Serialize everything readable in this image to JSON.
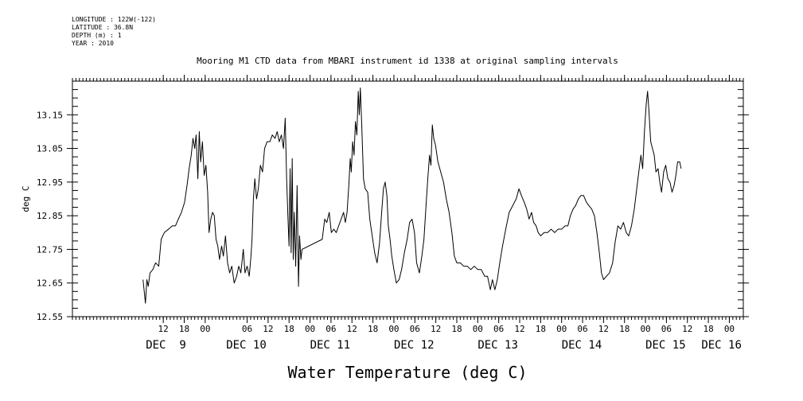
{
  "meta": {
    "longitude": "LONGITUDE : 122W(-122)",
    "latitude": "LATITUDE : 36.8N",
    "depth": "DEPTH (m) : 1",
    "year": "YEAR : 2010"
  },
  "chart_data": {
    "type": "line",
    "title": "Mooring M1 CTD data from MBARI instrument id 1338 at original sampling intervals",
    "xlabel": "Water Temperature (deg C)",
    "ylabel": "deg C",
    "ylim": [
      12.55,
      13.25
    ],
    "yticks": [
      12.55,
      12.65,
      12.75,
      12.85,
      12.95,
      13.05,
      13.15
    ],
    "ytick_labels": [
      "12.55",
      "12.65",
      "12.75",
      "12.85",
      "12.95",
      "13.05",
      "13.15"
    ],
    "x_unit": "hours from Dec 9 00:00",
    "xlim": [
      -20,
      172
    ],
    "x_hour_ticks": [
      {
        "t": 6,
        "label": "12"
      },
      {
        "t": 12,
        "label": "18"
      },
      {
        "t": 18,
        "label": "00"
      },
      {
        "t": 30,
        "label": "06"
      },
      {
        "t": 36,
        "label": "12"
      },
      {
        "t": 42,
        "label": "18"
      },
      {
        "t": 48,
        "label": "00"
      },
      {
        "t": 54,
        "label": "06"
      },
      {
        "t": 60,
        "label": "12"
      },
      {
        "t": 66,
        "label": "18"
      },
      {
        "t": 72,
        "label": "00"
      },
      {
        "t": 78,
        "label": "06"
      },
      {
        "t": 84,
        "label": "12"
      },
      {
        "t": 90,
        "label": "18"
      },
      {
        "t": 96,
        "label": "00"
      },
      {
        "t": 102,
        "label": "06"
      },
      {
        "t": 108,
        "label": "12"
      },
      {
        "t": 114,
        "label": "18"
      },
      {
        "t": 120,
        "label": "00"
      },
      {
        "t": 126,
        "label": "06"
      },
      {
        "t": 132,
        "label": "12"
      },
      {
        "t": 138,
        "label": "18"
      },
      {
        "t": 144,
        "label": "00"
      },
      {
        "t": 150,
        "label": "06"
      },
      {
        "t": 156,
        "label": "12"
      },
      {
        "t": 162,
        "label": "18"
      },
      {
        "t": 168,
        "label": "00"
      }
    ],
    "x_day_labels": [
      {
        "t": 1,
        "label": "DEC  9"
      },
      {
        "t": 24,
        "label": "DEC 10"
      },
      {
        "t": 48,
        "label": "DEC 11"
      },
      {
        "t": 72,
        "label": "DEC 12"
      },
      {
        "t": 96,
        "label": "DEC 13"
      },
      {
        "t": 120,
        "label": "DEC 14"
      },
      {
        "t": 144,
        "label": "DEC 15"
      },
      {
        "t": 160,
        "label": "DEC 16"
      }
    ],
    "series": [
      {
        "points": [
          [
            0.2,
            12.66
          ],
          [
            0.6,
            12.62
          ],
          [
            0.9,
            12.59
          ],
          [
            1.3,
            12.66
          ],
          [
            1.7,
            12.64
          ],
          [
            2.2,
            12.68
          ],
          [
            3.0,
            12.69
          ],
          [
            3.8,
            12.71
          ],
          [
            4.7,
            12.7
          ],
          [
            5.4,
            12.78
          ],
          [
            6.3,
            12.8
          ],
          [
            7.5,
            12.81
          ],
          [
            8.6,
            12.82
          ],
          [
            9.5,
            12.82
          ],
          [
            10.3,
            12.84
          ],
          [
            11.2,
            12.86
          ],
          [
            12.1,
            12.89
          ],
          [
            12.8,
            12.94
          ],
          [
            13.4,
            12.99
          ],
          [
            14.0,
            13.03
          ],
          [
            14.5,
            13.08
          ],
          [
            15.0,
            13.05
          ],
          [
            15.4,
            13.09
          ],
          [
            15.9,
            12.96
          ],
          [
            16.3,
            13.1
          ],
          [
            16.7,
            13.01
          ],
          [
            17.2,
            13.07
          ],
          [
            17.7,
            12.97
          ],
          [
            18.2,
            13.0
          ],
          [
            18.7,
            12.92
          ],
          [
            19.1,
            12.8
          ],
          [
            19.6,
            12.84
          ],
          [
            20.1,
            12.86
          ],
          [
            20.6,
            12.85
          ],
          [
            21.1,
            12.78
          ],
          [
            21.6,
            12.76
          ],
          [
            22.1,
            12.72
          ],
          [
            22.7,
            12.76
          ],
          [
            23.2,
            12.73
          ],
          [
            23.8,
            12.79
          ],
          [
            24.4,
            12.71
          ],
          [
            25.0,
            12.68
          ],
          [
            25.6,
            12.7
          ],
          [
            26.3,
            12.65
          ],
          [
            27.0,
            12.67
          ],
          [
            27.6,
            12.7
          ],
          [
            28.2,
            12.68
          ],
          [
            28.9,
            12.75
          ],
          [
            29.4,
            12.68
          ],
          [
            30.0,
            12.7
          ],
          [
            30.6,
            12.67
          ],
          [
            31.1,
            12.73
          ],
          [
            31.4,
            12.78
          ],
          [
            31.8,
            12.9
          ],
          [
            32.2,
            12.96
          ],
          [
            32.7,
            12.9
          ],
          [
            33.2,
            12.93
          ],
          [
            33.8,
            13.0
          ],
          [
            34.4,
            12.98
          ],
          [
            35.0,
            13.05
          ],
          [
            35.7,
            13.07
          ],
          [
            36.5,
            13.07
          ],
          [
            37.2,
            13.09
          ],
          [
            38.0,
            13.08
          ],
          [
            38.6,
            13.1
          ],
          [
            39.2,
            13.07
          ],
          [
            39.8,
            13.09
          ],
          [
            40.4,
            13.05
          ],
          [
            40.9,
            13.14
          ],
          [
            41.3,
            12.96
          ],
          [
            41.7,
            12.84
          ],
          [
            42.0,
            12.76
          ],
          [
            42.3,
            12.99
          ],
          [
            42.6,
            12.74
          ],
          [
            42.9,
            13.02
          ],
          [
            43.2,
            12.72
          ],
          [
            43.5,
            12.86
          ],
          [
            43.9,
            12.7
          ],
          [
            44.3,
            12.94
          ],
          [
            44.7,
            12.64
          ],
          [
            45.0,
            12.79
          ],
          [
            45.4,
            12.72
          ],
          [
            45.7,
            12.75
          ],
          [
            51.5,
            12.78
          ],
          [
            52.2,
            12.84
          ],
          [
            52.8,
            12.83
          ],
          [
            53.5,
            12.86
          ],
          [
            54.1,
            12.8
          ],
          [
            54.8,
            12.81
          ],
          [
            55.5,
            12.8
          ],
          [
            56.2,
            12.82
          ],
          [
            56.9,
            12.84
          ],
          [
            57.6,
            12.86
          ],
          [
            58.1,
            12.83
          ],
          [
            58.6,
            12.86
          ],
          [
            59.1,
            12.94
          ],
          [
            59.5,
            13.02
          ],
          [
            59.8,
            12.98
          ],
          [
            60.2,
            13.07
          ],
          [
            60.6,
            13.03
          ],
          [
            61.0,
            13.13
          ],
          [
            61.4,
            13.09
          ],
          [
            61.8,
            13.22
          ],
          [
            62.1,
            13.15
          ],
          [
            62.4,
            13.23
          ],
          [
            62.8,
            13.12
          ],
          [
            63.3,
            12.96
          ],
          [
            63.8,
            12.93
          ],
          [
            64.5,
            12.92
          ],
          [
            65.1,
            12.84
          ],
          [
            65.8,
            12.79
          ],
          [
            66.5,
            12.74
          ],
          [
            67.2,
            12.71
          ],
          [
            67.9,
            12.77
          ],
          [
            68.5,
            12.86
          ],
          [
            69.0,
            12.93
          ],
          [
            69.5,
            12.95
          ],
          [
            70.0,
            12.91
          ],
          [
            70.4,
            12.82
          ],
          [
            70.9,
            12.78
          ],
          [
            71.4,
            12.73
          ],
          [
            72.0,
            12.69
          ],
          [
            72.7,
            12.65
          ],
          [
            73.5,
            12.66
          ],
          [
            74.2,
            12.69
          ],
          [
            75.0,
            12.74
          ],
          [
            75.8,
            12.78
          ],
          [
            76.5,
            12.83
          ],
          [
            77.2,
            12.84
          ],
          [
            77.9,
            12.8
          ],
          [
            78.5,
            12.71
          ],
          [
            79.3,
            12.68
          ],
          [
            80.0,
            12.73
          ],
          [
            80.6,
            12.78
          ],
          [
            81.2,
            12.88
          ],
          [
            81.7,
            12.96
          ],
          [
            82.2,
            13.03
          ],
          [
            82.6,
            13.0
          ],
          [
            83.0,
            13.12
          ],
          [
            83.4,
            13.08
          ],
          [
            83.9,
            13.06
          ],
          [
            84.6,
            13.01
          ],
          [
            85.4,
            12.98
          ],
          [
            86.2,
            12.95
          ],
          [
            87.0,
            12.9
          ],
          [
            87.8,
            12.86
          ],
          [
            88.6,
            12.8
          ],
          [
            89.3,
            12.73
          ],
          [
            90.0,
            12.71
          ],
          [
            91.0,
            12.71
          ],
          [
            92.0,
            12.7
          ],
          [
            93.0,
            12.7
          ],
          [
            94.0,
            12.69
          ],
          [
            95.0,
            12.7
          ],
          [
            96.0,
            12.69
          ],
          [
            97.0,
            12.69
          ],
          [
            98.0,
            12.67
          ],
          [
            98.8,
            12.67
          ],
          [
            99.6,
            12.63
          ],
          [
            100.2,
            12.66
          ],
          [
            100.9,
            12.63
          ],
          [
            101.6,
            12.66
          ],
          [
            102.3,
            12.71
          ],
          [
            103.1,
            12.76
          ],
          [
            104.0,
            12.81
          ],
          [
            105.0,
            12.86
          ],
          [
            106.0,
            12.88
          ],
          [
            107.0,
            12.9
          ],
          [
            107.8,
            12.93
          ],
          [
            108.5,
            12.91
          ],
          [
            109.3,
            12.89
          ],
          [
            110.0,
            12.87
          ],
          [
            110.7,
            12.84
          ],
          [
            111.4,
            12.86
          ],
          [
            112.0,
            12.83
          ],
          [
            112.7,
            12.82
          ],
          [
            113.3,
            12.8
          ],
          [
            114.0,
            12.79
          ],
          [
            115.0,
            12.8
          ],
          [
            116.0,
            12.8
          ],
          [
            117.0,
            12.81
          ],
          [
            118.0,
            12.8
          ],
          [
            119.0,
            12.81
          ],
          [
            120.0,
            12.81
          ],
          [
            121.0,
            12.82
          ],
          [
            121.8,
            12.82
          ],
          [
            122.5,
            12.85
          ],
          [
            123.3,
            12.87
          ],
          [
            124.0,
            12.88
          ],
          [
            124.8,
            12.9
          ],
          [
            125.5,
            12.91
          ],
          [
            126.3,
            12.91
          ],
          [
            127.1,
            12.89
          ],
          [
            127.8,
            12.88
          ],
          [
            128.6,
            12.87
          ],
          [
            129.4,
            12.85
          ],
          [
            130.1,
            12.8
          ],
          [
            130.8,
            12.74
          ],
          [
            131.4,
            12.68
          ],
          [
            132.0,
            12.66
          ],
          [
            132.8,
            12.67
          ],
          [
            133.7,
            12.68
          ],
          [
            134.6,
            12.71
          ],
          [
            135.3,
            12.77
          ],
          [
            136.1,
            12.82
          ],
          [
            136.9,
            12.81
          ],
          [
            137.7,
            12.83
          ],
          [
            138.5,
            12.8
          ],
          [
            139.2,
            12.79
          ],
          [
            140.0,
            12.82
          ],
          [
            140.8,
            12.87
          ],
          [
            141.5,
            12.93
          ],
          [
            142.2,
            12.99
          ],
          [
            142.7,
            13.03
          ],
          [
            143.2,
            12.99
          ],
          [
            143.7,
            13.1
          ],
          [
            144.2,
            13.18
          ],
          [
            144.6,
            13.22
          ],
          [
            145.0,
            13.16
          ],
          [
            145.5,
            13.07
          ],
          [
            146.0,
            13.05
          ],
          [
            146.5,
            13.03
          ],
          [
            147.0,
            12.98
          ],
          [
            147.6,
            12.99
          ],
          [
            148.1,
            12.95
          ],
          [
            148.6,
            12.92
          ],
          [
            149.2,
            12.98
          ],
          [
            149.8,
            13.0
          ],
          [
            150.4,
            12.96
          ],
          [
            151.0,
            12.95
          ],
          [
            151.6,
            12.92
          ],
          [
            152.2,
            12.94
          ],
          [
            152.7,
            12.97
          ],
          [
            153.2,
            13.01
          ],
          [
            153.8,
            13.01
          ],
          [
            154.2,
            12.99
          ]
        ]
      }
    ]
  }
}
